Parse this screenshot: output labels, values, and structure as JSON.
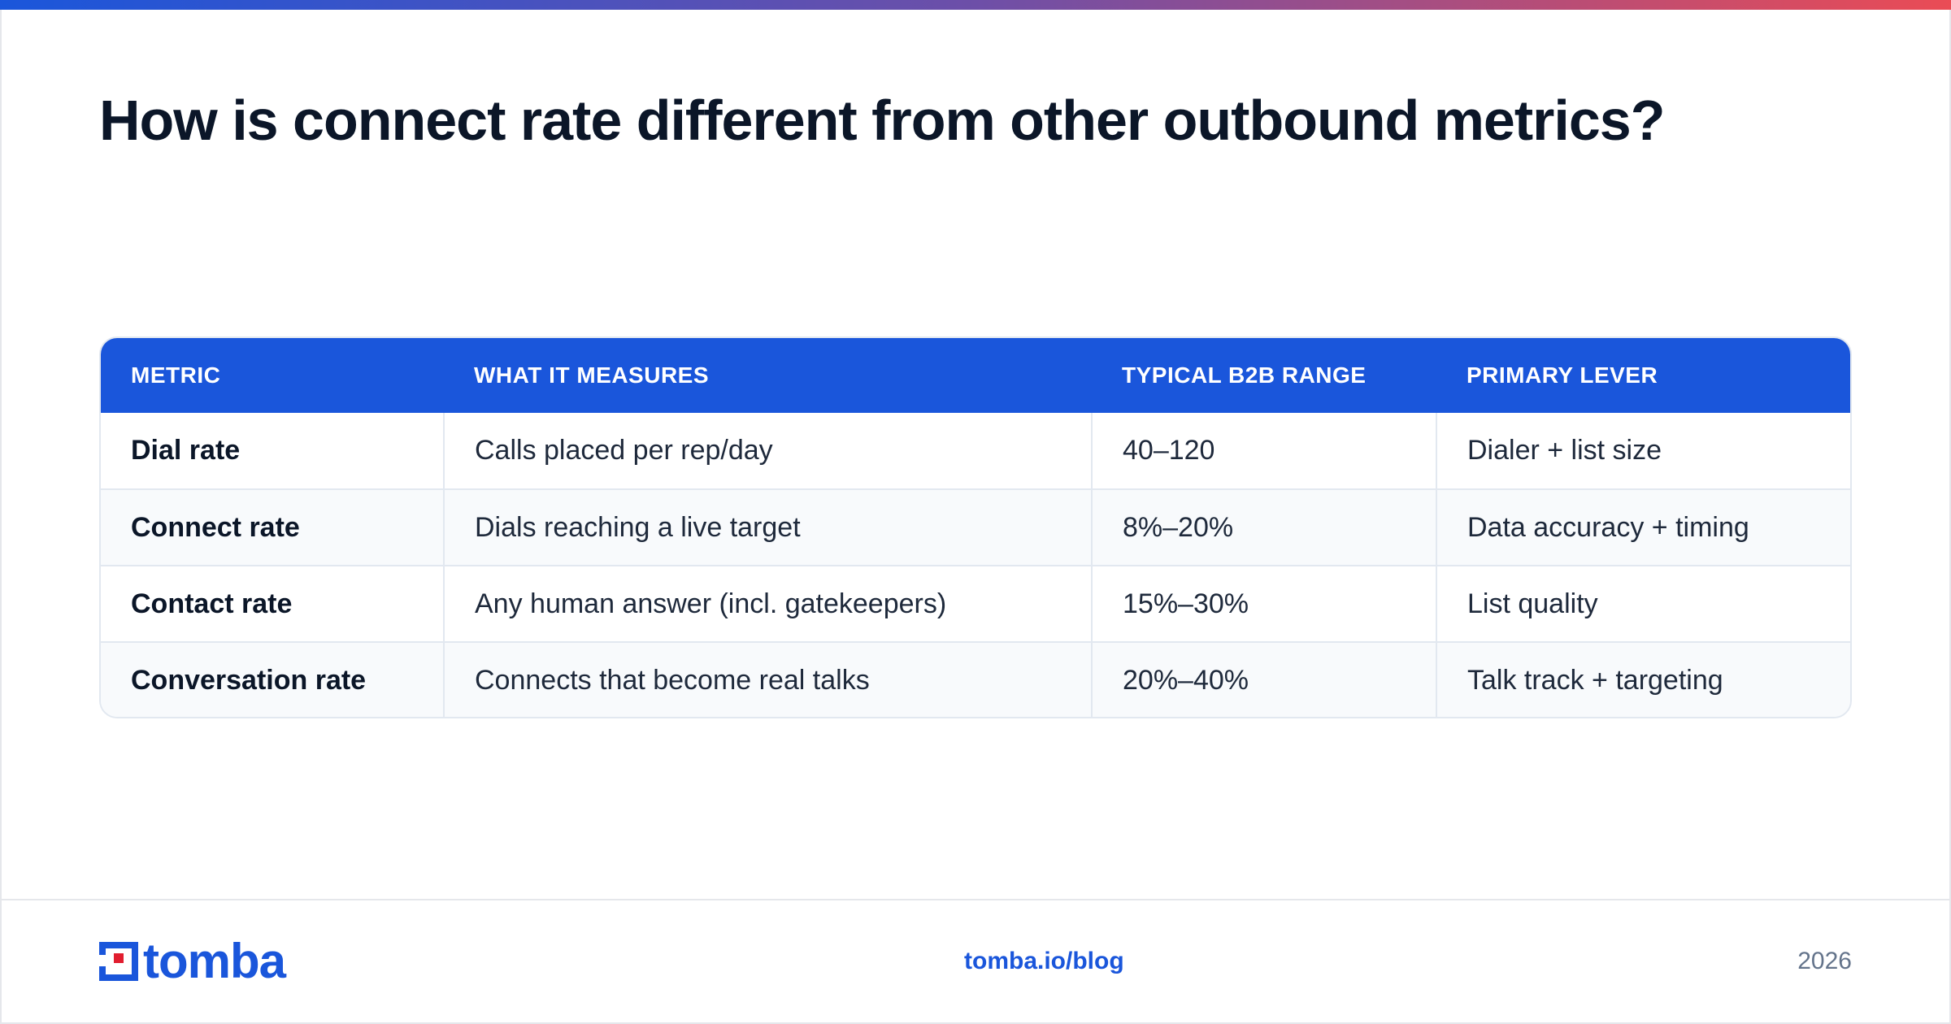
{
  "title": "How is connect rate different from other outbound metrics?",
  "table": {
    "headers": [
      "METRIC",
      "WHAT IT MEASURES",
      "TYPICAL B2B RANGE",
      "PRIMARY LEVER"
    ],
    "rows": [
      [
        "Dial rate",
        "Calls placed per rep/day",
        "40–120",
        "Dialer + list size"
      ],
      [
        "Connect rate",
        "Dials reaching a live target",
        "8%–20%",
        "Data accuracy + timing"
      ],
      [
        "Contact rate",
        "Any human answer (incl. gatekeepers)",
        "15%–30%",
        "List quality"
      ],
      [
        "Conversation rate",
        "Connects that become real talks",
        "20%–40%",
        "Talk track + targeting"
      ]
    ]
  },
  "footer": {
    "logo_text": "tomba",
    "link": "tomba.io/blog",
    "year": "2026"
  },
  "colors": {
    "accent": "#1a56db",
    "logo_red": "#e11d2e",
    "gradient_start": "#1a56db",
    "gradient_end": "#ea4c55"
  }
}
